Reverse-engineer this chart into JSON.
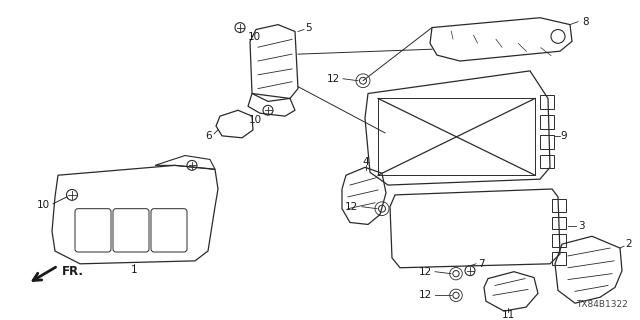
{
  "bg_color": "#ffffff",
  "line_color": "#2a2a2a",
  "text_color": "#1a1a1a",
  "diagram_id": "TX84B1322",
  "title_font": 7.0,
  "label_font": 7.5
}
